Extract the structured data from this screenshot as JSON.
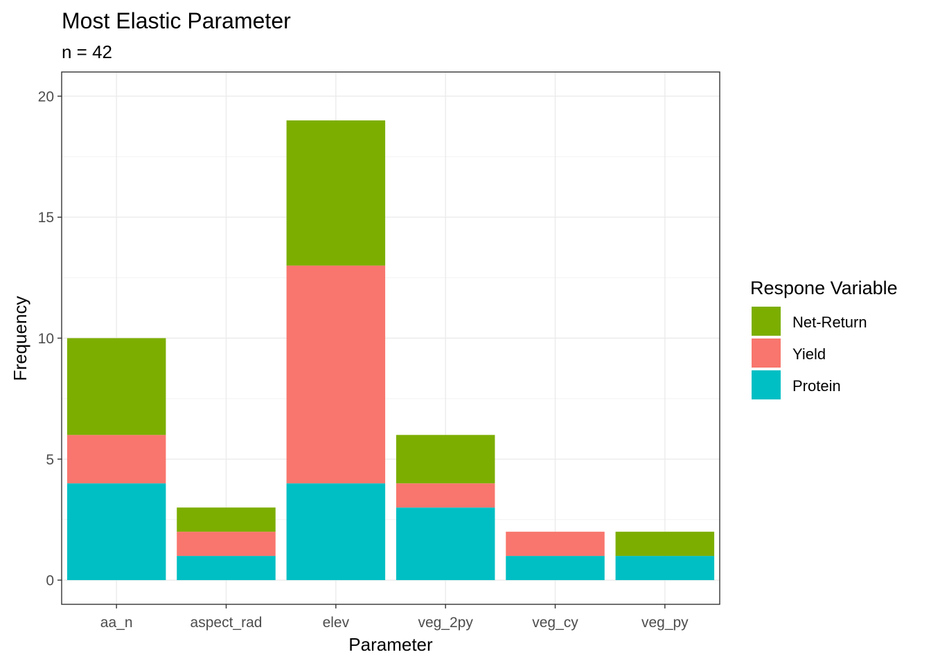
{
  "chart_data": {
    "type": "bar",
    "stacked": true,
    "title": "Most Elastic Parameter",
    "subtitle": "n = 42",
    "xlabel": "Parameter",
    "ylabel": "Frequency",
    "categories": [
      "aa_n",
      "aspect_rad",
      "elev",
      "veg_2py",
      "veg_cy",
      "veg_py"
    ],
    "series": [
      {
        "name": "Protein",
        "color": "#00BFC4",
        "values": [
          4,
          1,
          4,
          3,
          1,
          1
        ]
      },
      {
        "name": "Yield",
        "color": "#F8766D",
        "values": [
          2,
          1,
          9,
          1,
          1,
          0
        ]
      },
      {
        "name": "Net-Return",
        "color": "#7CAE00",
        "values": [
          4,
          1,
          6,
          2,
          0,
          1
        ]
      }
    ],
    "ylim": [
      -1,
      21
    ],
    "yticks": [
      0,
      5,
      10,
      15,
      20
    ],
    "grid": true,
    "legend": {
      "title": "Respone Variable",
      "position": "right",
      "order": [
        "Net-Return",
        "Yield",
        "Protein"
      ]
    }
  }
}
